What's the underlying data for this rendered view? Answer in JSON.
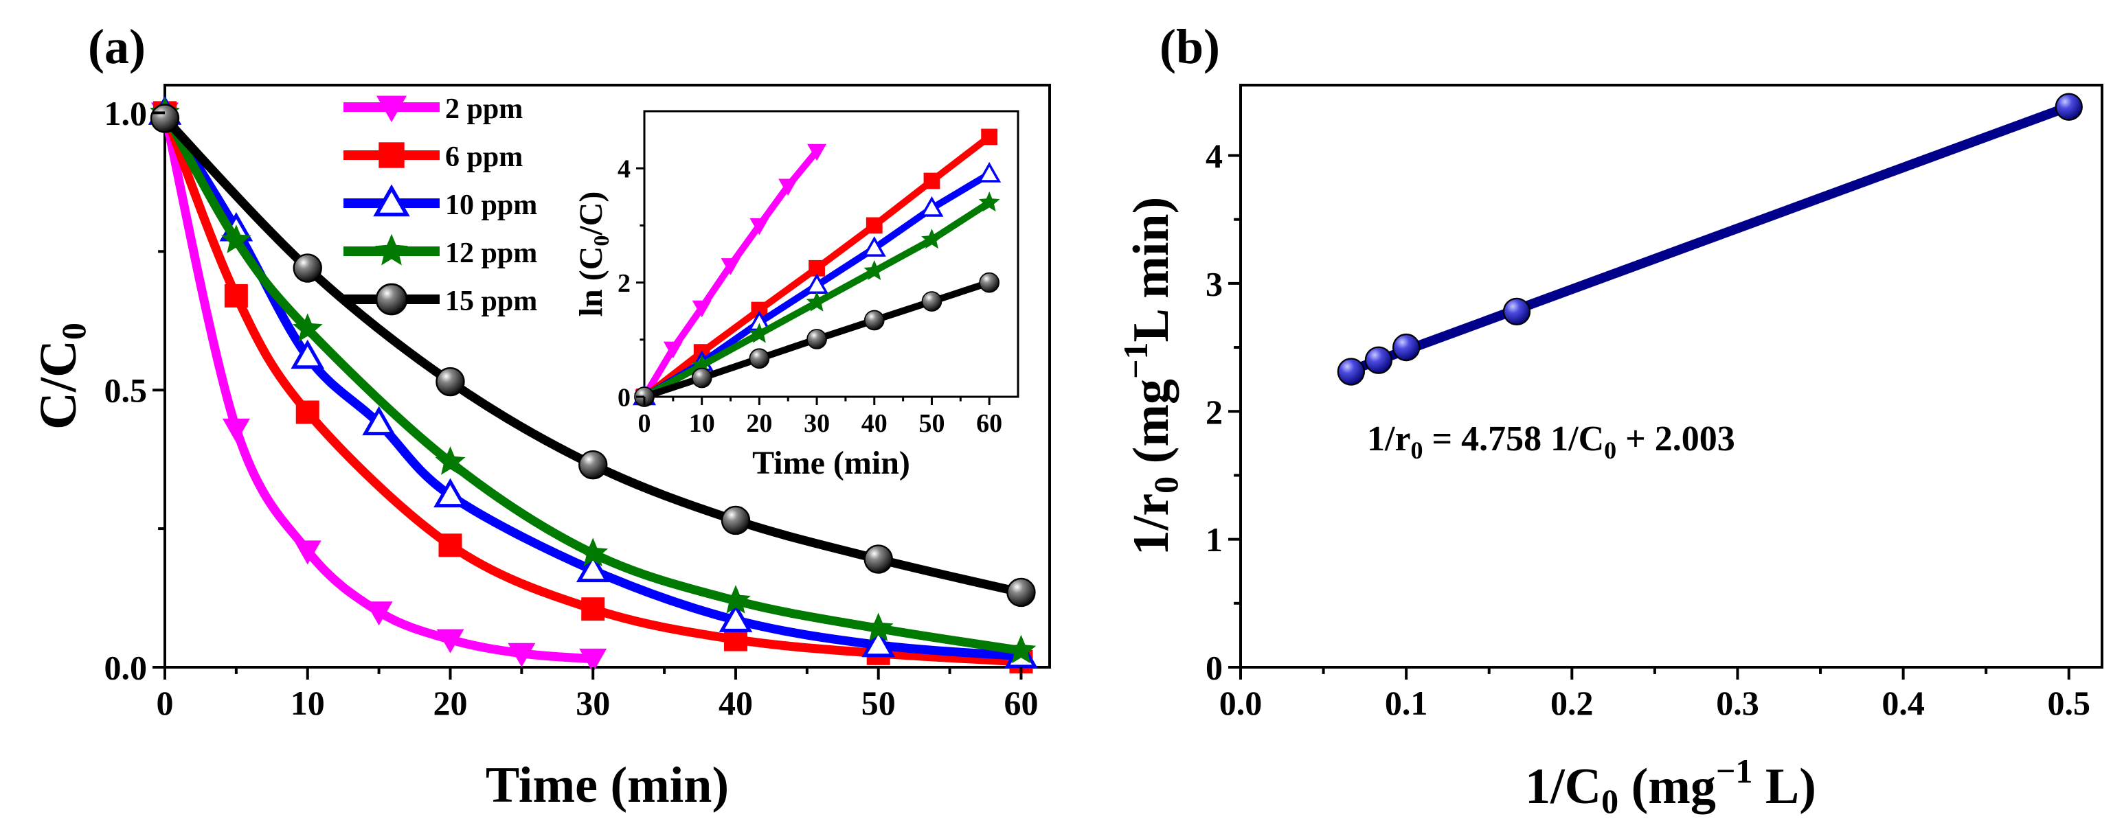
{
  "panels": {
    "a": {
      "label": "(a)"
    },
    "b": {
      "label": "(b)"
    }
  },
  "chart_data": [
    {
      "id": "main-a",
      "type": "line",
      "title": "",
      "xlabel": "Time (min)",
      "ylabel": "C/C₀",
      "xlim": [
        0,
        62
      ],
      "ylim": [
        0,
        1.05
      ],
      "xticks": [
        0,
        10,
        20,
        30,
        40,
        50,
        60
      ],
      "xtick_labels": [
        "0",
        "10",
        "20",
        "30",
        "40",
        "50",
        "60"
      ],
      "yticks": [
        0.0,
        0.5,
        1.0
      ],
      "ytick_labels": [
        "0.0",
        "0.5",
        "1.0"
      ],
      "legend_position": "top-center",
      "series": [
        {
          "name": "2 ppm",
          "color": "#ff00ff",
          "marker": "triangle-down",
          "x": [
            0,
            5,
            10,
            15,
            20,
            25,
            30
          ],
          "y": [
            1.0,
            0.43,
            0.21,
            0.1,
            0.05,
            0.025,
            0.015
          ]
        },
        {
          "name": "6 ppm",
          "color": "#ff0000",
          "marker": "square",
          "x": [
            0,
            5,
            10,
            20,
            30,
            40,
            50,
            60
          ],
          "y": [
            1.0,
            0.67,
            0.46,
            0.22,
            0.105,
            0.05,
            0.025,
            0.01
          ]
        },
        {
          "name": "10 ppm",
          "color": "#0000ff",
          "marker": "triangle-up-open",
          "x": [
            0,
            5,
            10,
            15,
            20,
            30,
            40,
            50,
            60
          ],
          "y": [
            1.0,
            0.79,
            0.56,
            0.44,
            0.31,
            0.175,
            0.085,
            0.04,
            0.02
          ]
        },
        {
          "name": "12 ppm",
          "color": "#007a00",
          "marker": "star",
          "x": [
            0,
            5,
            10,
            20,
            30,
            40,
            50,
            60
          ],
          "y": [
            1.0,
            0.77,
            0.61,
            0.37,
            0.205,
            0.12,
            0.07,
            0.03
          ]
        },
        {
          "name": "15 ppm",
          "color": "#000000",
          "marker": "sphere",
          "x": [
            0,
            10,
            20,
            30,
            40,
            50,
            60
          ],
          "y": [
            0.99,
            0.72,
            0.515,
            0.365,
            0.265,
            0.195,
            0.135
          ]
        }
      ]
    },
    {
      "id": "inset-a",
      "type": "line",
      "title": "",
      "xlabel": "Time (min)",
      "ylabel": "ln (C₀/C)",
      "xlim": [
        0,
        65
      ],
      "ylim": [
        0,
        5
      ],
      "xticks": [
        0,
        10,
        20,
        30,
        40,
        50,
        60
      ],
      "xtick_labels": [
        "0",
        "10",
        "20",
        "30",
        "40",
        "50",
        "60"
      ],
      "yticks": [
        0,
        2,
        4
      ],
      "ytick_labels": [
        "0",
        "2",
        "4"
      ],
      "series": [
        {
          "name": "2 ppm",
          "color": "#ff00ff",
          "marker": "triangle-down",
          "x": [
            0,
            5,
            10,
            15,
            20,
            25,
            30
          ],
          "y": [
            0,
            0.84,
            1.56,
            2.3,
            3.0,
            3.69,
            4.3
          ]
        },
        {
          "name": "6 ppm",
          "color": "#ff0000",
          "marker": "square",
          "x": [
            0,
            10,
            20,
            30,
            40,
            50,
            60
          ],
          "y": [
            0,
            0.78,
            1.52,
            2.25,
            3.0,
            3.78,
            4.55
          ]
        },
        {
          "name": "10 ppm",
          "color": "#0000ff",
          "marker": "triangle-up-open",
          "x": [
            0,
            10,
            20,
            30,
            40,
            50,
            60
          ],
          "y": [
            0,
            0.6,
            1.3,
            1.95,
            2.6,
            3.3,
            3.9
          ]
        },
        {
          "name": "12 ppm",
          "color": "#007a00",
          "marker": "star",
          "x": [
            0,
            10,
            20,
            30,
            40,
            50,
            60
          ],
          "y": [
            0,
            0.55,
            1.1,
            1.65,
            2.2,
            2.75,
            3.4
          ]
        },
        {
          "name": "15 ppm",
          "color": "#000000",
          "marker": "sphere",
          "x": [
            0,
            10,
            20,
            30,
            40,
            50,
            60
          ],
          "y": [
            0,
            0.33,
            0.67,
            1.01,
            1.34,
            1.67,
            2.0
          ]
        }
      ]
    },
    {
      "id": "main-b",
      "type": "scatter",
      "title": "",
      "xlabel": "1/C₀ (mg⁻¹ L)",
      "ylabel": "1/r₀ (mg⁻¹L min)",
      "xlim": [
        0,
        0.52
      ],
      "ylim": [
        0,
        4.55
      ],
      "xticks": [
        0.0,
        0.1,
        0.2,
        0.3,
        0.4,
        0.5
      ],
      "xtick_labels": [
        "0.0",
        "0.1",
        "0.2",
        "0.3",
        "0.4",
        "0.5"
      ],
      "yticks": [
        0,
        1,
        2,
        3,
        4
      ],
      "ytick_labels": [
        "0",
        "1",
        "2",
        "3",
        "4"
      ],
      "fit": {
        "slope": 4.758,
        "intercept": 2.003,
        "x_from": 0.0667,
        "x_to": 0.5,
        "color": "#00008b"
      },
      "equation": "1/r₀ = 4.758 1/C₀ + 2.003",
      "series": [
        {
          "name": "data",
          "color": "#2a2ad0",
          "marker": "sphere",
          "x": [
            0.0667,
            0.0833,
            0.1,
            0.1667,
            0.5
          ],
          "y": [
            2.31,
            2.4,
            2.5,
            2.78,
            4.38
          ]
        }
      ]
    }
  ]
}
